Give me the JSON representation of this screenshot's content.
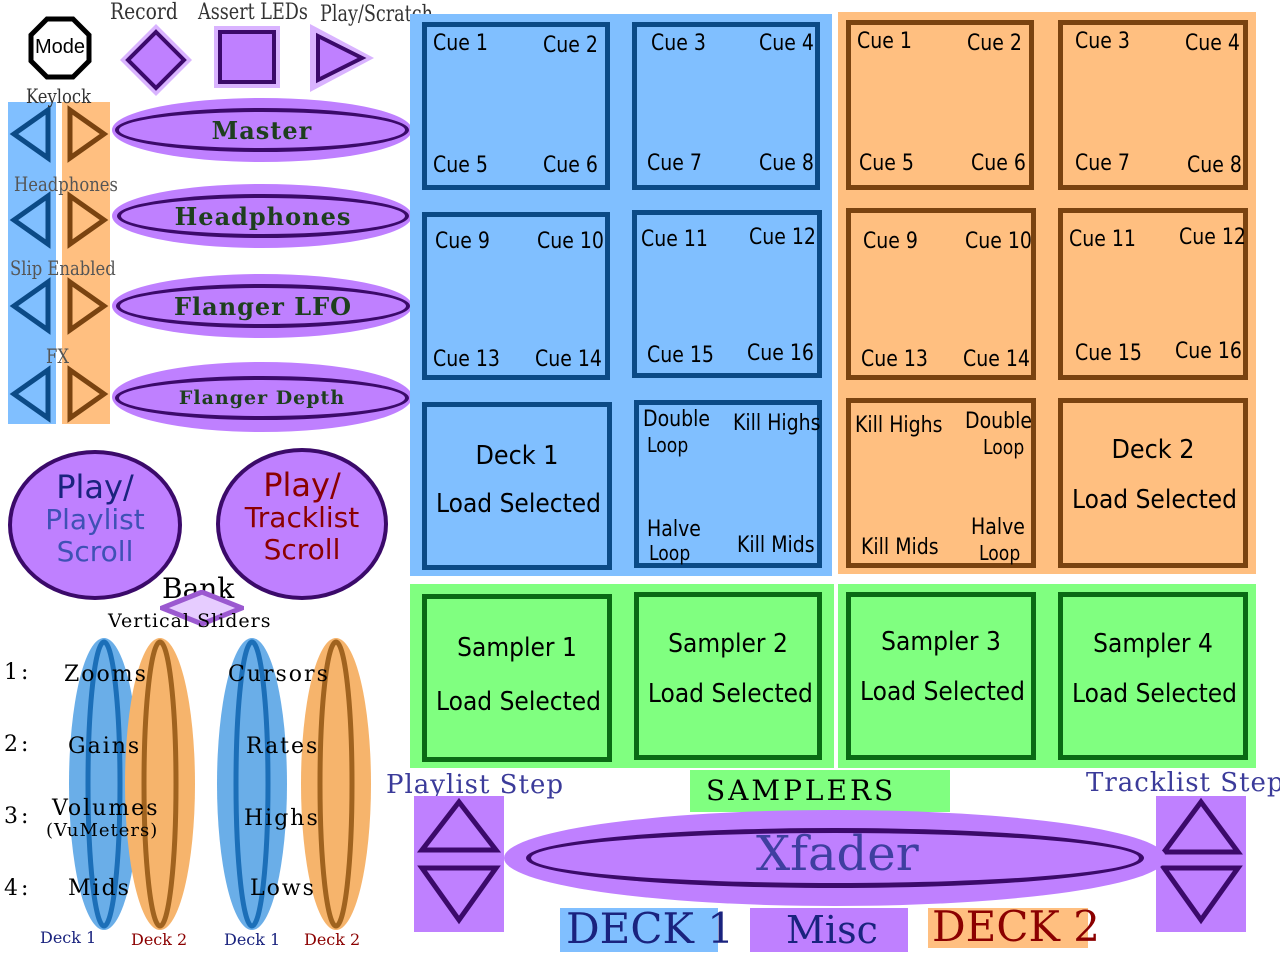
{
  "top_controls": {
    "mode": "Mode",
    "record": "Record",
    "assert_leds": "Assert LEDs",
    "play_scratch": "Play/Scratch"
  },
  "side_labels": {
    "keylock": "Keylock",
    "headphones": "Headphones",
    "slip_enabled": "Slip Enabled",
    "fx": "FX"
  },
  "knobs": {
    "master": "Master",
    "headphones": "Headphones",
    "flanger_lfo": "Flanger LFO",
    "flanger_depth": "Flanger Depth"
  },
  "play_left": {
    "line1": "Play/",
    "line2": "Playlist",
    "line3": "Scroll"
  },
  "play_right": {
    "line1": "Play/",
    "line2": "Tracklist",
    "line3": "Scroll"
  },
  "bank": "Bank",
  "vertical_sliders": "Vertical Sliders",
  "slider_rows": [
    {
      "num": "1:",
      "left": "Zooms",
      "right": "Cursors"
    },
    {
      "num": "2:",
      "left": "Gains",
      "right": "Rates"
    },
    {
      "num": "3:",
      "left": "Volumes",
      "left_sub": "(VuMeters)",
      "right": "Highs"
    },
    {
      "num": "4:",
      "left": "Mids",
      "right": "Lows"
    }
  ],
  "slider_decks": {
    "deck1": "Deck 1",
    "deck2": "Deck 2"
  },
  "deck1": {
    "pads": [
      [
        "Cue 1",
        "Cue 2",
        "Cue 5",
        "Cue 6"
      ],
      [
        "Cue 3",
        "Cue 4",
        "Cue 7",
        "Cue 8"
      ],
      [
        "Cue 9",
        "Cue 10",
        "Cue 13",
        "Cue 14"
      ],
      [
        "Cue 11",
        "Cue 12",
        "Cue 15",
        "Cue 16"
      ]
    ],
    "load": {
      "line1": "Deck 1",
      "line2": "Load Selected"
    },
    "loop_pad": {
      "double": "Double",
      "double2": "Loop",
      "kill_highs": "Kill Highs",
      "halve": "Halve",
      "halve2": "Loop",
      "kill_mids": "Kill Mids"
    }
  },
  "deck2": {
    "pads": [
      [
        "Cue 1",
        "Cue 2",
        "Cue 5",
        "Cue 6"
      ],
      [
        "Cue 3",
        "Cue 4",
        "Cue 7",
        "Cue 8"
      ],
      [
        "Cue 9",
        "Cue 10",
        "Cue 13",
        "Cue 14"
      ],
      [
        "Cue 11",
        "Cue 12",
        "Cue 15",
        "Cue 16"
      ]
    ],
    "load": {
      "line1": "Deck 2",
      "line2": "Load Selected"
    },
    "loop_pad": {
      "kill_highs": "Kill Highs",
      "double": "Double",
      "double2": "Loop",
      "kill_mids": "Kill Mids",
      "halve": "Halve",
      "halve2": "Loop"
    }
  },
  "samplers": [
    {
      "line1": "Sampler 1",
      "line2": "Load Selected"
    },
    {
      "line1": "Sampler 2",
      "line2": "Load Selected"
    },
    {
      "line1": "Sampler 3",
      "line2": "Load Selected"
    },
    {
      "line1": "Sampler 4",
      "line2": "Load Selected"
    }
  ],
  "bottom": {
    "playlist_step": "Playlist Step",
    "tracklist_step": "Tracklist Step",
    "samplers_label": "SAMPLERS",
    "xfader": "Xfader",
    "deck1": "DECK 1",
    "misc": "Misc",
    "deck2": "DECK 2"
  },
  "colors": {
    "deck1_bg": "#80bfff",
    "deck2_bg": "#ffbf80",
    "sampler_bg": "#80ff80",
    "misc_purple": "#bf80ff",
    "dark_purple": "#3b0a6a"
  }
}
